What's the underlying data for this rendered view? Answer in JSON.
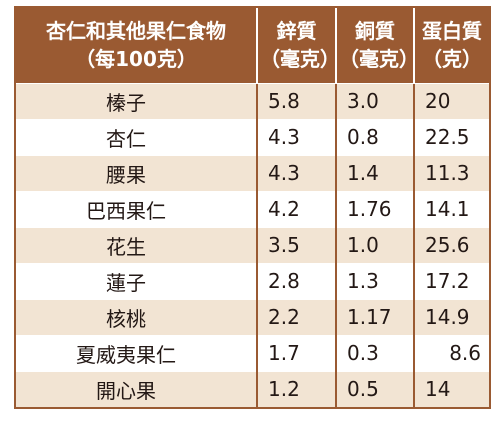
{
  "table": {
    "headers": {
      "name": {
        "line1": "杏仁和其他果仁食物",
        "line2": "（每100克）"
      },
      "zinc": {
        "line1": "鋅質",
        "line2": "（毫克）"
      },
      "copper": {
        "line1": "銅質",
        "line2": "（毫克）"
      },
      "protein": {
        "line1": "蛋白質",
        "line2": "（克）"
      }
    },
    "rows": [
      {
        "name": "榛子",
        "zinc": "5.8",
        "copper": "3.0",
        "protein": "20"
      },
      {
        "name": "杏仁",
        "zinc": "4.3",
        "copper": "0.8",
        "protein": "22.5"
      },
      {
        "name": "腰果",
        "zinc": "4.3",
        "copper": "1.4",
        "protein": "11.3"
      },
      {
        "name": "巴西果仁",
        "zinc": "4.2",
        "copper": "1.76",
        "protein": "14.1"
      },
      {
        "name": "花生",
        "zinc": "3.5",
        "copper": "1.0",
        "protein": "25.6"
      },
      {
        "name": "蓮子",
        "zinc": "2.8",
        "copper": "1.3",
        "protein": "17.2"
      },
      {
        "name": "核桃",
        "zinc": "2.2",
        "copper": "1.17",
        "protein": "14.9"
      },
      {
        "name": "夏威夷果仁",
        "zinc": "1.7",
        "copper": "0.3",
        "protein": "8.6"
      },
      {
        "name": "開心果",
        "zinc": "1.2",
        "copper": "0.5",
        "protein": "14"
      }
    ]
  },
  "colors": {
    "header_background": "#9a5a32",
    "header_text": "#ffffff",
    "stripe_background": "#f2e4d3",
    "body_text": "#231815"
  }
}
